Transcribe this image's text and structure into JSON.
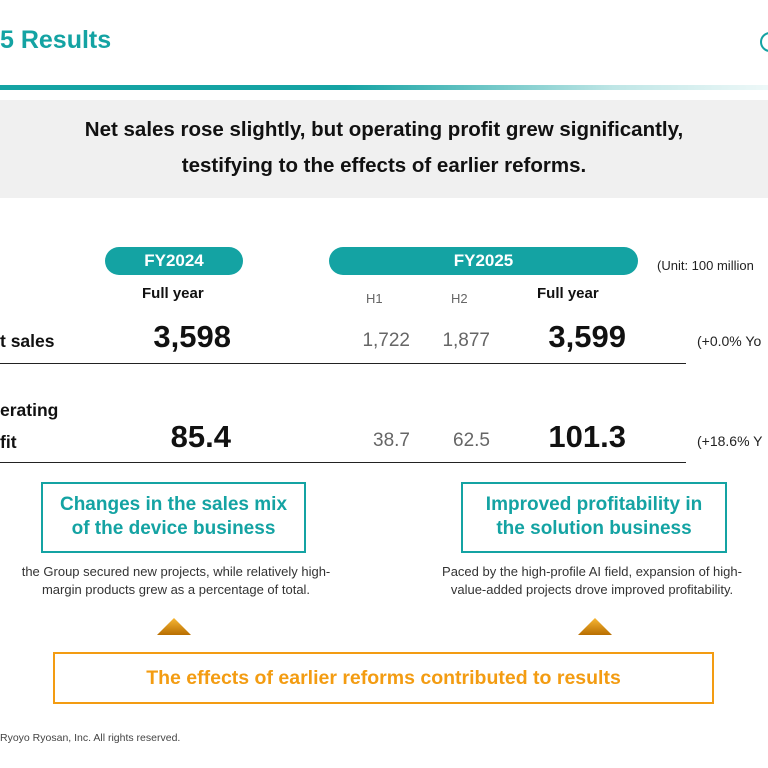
{
  "slide_title": "5 Results",
  "headline": {
    "line1": "Net sales rose slightly, but operating profit grew significantly,",
    "line2": "testifying to the effects of earlier reforms."
  },
  "table": {
    "fy2024_label": "FY2024",
    "fy2025_label": "FY2025",
    "unit_note": "(Unit: 100 million",
    "full_year_label": "Full year",
    "h1_label": "H1",
    "h2_label": "H2",
    "rows": [
      {
        "label": "t sales",
        "fy2024_full": "3,598",
        "h1": "1,722",
        "h2": "1,877",
        "fy2025_full": "3,599",
        "yoy": "(+0.0% Yo"
      },
      {
        "label_line1": "erating",
        "label_line2": "fit",
        "fy2024_full": "85.4",
        "h1": "38.7",
        "h2": "62.5",
        "fy2025_full": "101.3",
        "yoy": "(+18.6% Y"
      }
    ]
  },
  "drivers": [
    {
      "title_line1": "Changes in the sales mix",
      "title_line2": "of the device business",
      "desc_line1": "the Group secured new projects, while relatively high-",
      "desc_line2": "margin products grew as a percentage of total."
    },
    {
      "title_line1": "Improved profitability in",
      "title_line2": "the solution business",
      "desc_line1": "Paced by the high-profile AI field, expansion of high-",
      "desc_line2": "value-added projects drove improved profitability."
    }
  ],
  "conclusion": "The effects of earlier reforms contributed to results",
  "copyright": "Ryoyo Ryosan, Inc. All rights reserved.",
  "colors": {
    "accent_teal": "#14a3a3",
    "accent_orange": "#f39c12",
    "headline_bg": "#f0f0f0"
  }
}
